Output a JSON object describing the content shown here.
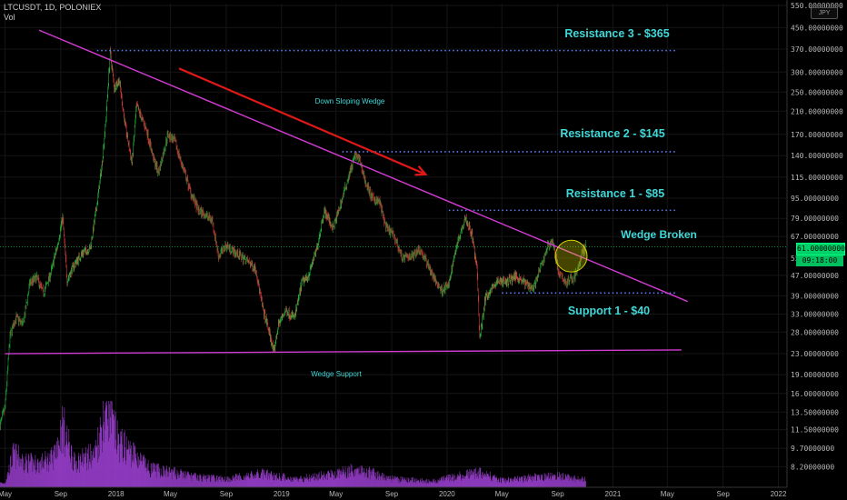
{
  "header": {
    "symbol_line": "LTCUSDT, 1D, POLONIEX",
    "volume_label": "Vol",
    "currency_badge": "JPY"
  },
  "price_tag": {
    "value": "61.00000000",
    "timer": "09:18:00"
  },
  "colors": {
    "background": "#000000",
    "wedge_line": "#d13bd1",
    "level_dotted": "#5f7fff",
    "annotation_text": "#3fd8d8",
    "arrow": "#e01818",
    "circle_fill": "#d8d800",
    "candle_up": "#1fae3a",
    "candle_down": "#d23a3a",
    "volume": "#9b3fd0"
  },
  "chart_data": {
    "type": "candlestick",
    "title": "",
    "y_scale": "log",
    "ylim": [
      6.8,
      560
    ],
    "xlim": [
      "2017-04-20",
      "2022-01-20"
    ],
    "y_ticks": [
      "550.00000000",
      "450.00000000",
      "370.00000000",
      "300.00000000",
      "250.00000000",
      "210.00000000",
      "170.00000000",
      "140.00000000",
      "115.00000000",
      "95.00000000",
      "79.00000000",
      "67.00000000",
      "55.00000000",
      "47.00000000",
      "39.00000000",
      "33.00000000",
      "28.00000000",
      "23.00000000",
      "19.00000000",
      "16.00000000",
      "13.50000000",
      "11.50000000",
      "9.70000000",
      "8.20000000"
    ],
    "y_tick_values": [
      550,
      450,
      370,
      300,
      250,
      210,
      170,
      140,
      115,
      95,
      79,
      67,
      55,
      47,
      39,
      33,
      28,
      23,
      19,
      16,
      13.5,
      11.5,
      9.7,
      8.2
    ],
    "x_ticks": [
      {
        "label": "May",
        "date": "2017-05-01"
      },
      {
        "label": "Sep",
        "date": "2017-09-01"
      },
      {
        "label": "2018",
        "date": "2018-01-01"
      },
      {
        "label": "May",
        "date": "2018-05-01"
      },
      {
        "label": "Sep",
        "date": "2018-09-01"
      },
      {
        "label": "2019",
        "date": "2019-01-01"
      },
      {
        "label": "May",
        "date": "2019-05-01"
      },
      {
        "label": "Sep",
        "date": "2019-09-01"
      },
      {
        "label": "2020",
        "date": "2020-01-01"
      },
      {
        "label": "May",
        "date": "2020-05-01"
      },
      {
        "label": "Sep",
        "date": "2020-09-01"
      },
      {
        "label": "2021",
        "date": "2021-01-01"
      },
      {
        "label": "May",
        "date": "2021-05-01"
      },
      {
        "label": "Sep",
        "date": "2021-09-01"
      },
      {
        "label": "2022",
        "date": "2022-01-01"
      }
    ],
    "price_path": [
      [
        "2017-04-20",
        12
      ],
      [
        "2017-05-01",
        14
      ],
      [
        "2017-05-12",
        27
      ],
      [
        "2017-05-25",
        32
      ],
      [
        "2017-06-10",
        30
      ],
      [
        "2017-06-25",
        44
      ],
      [
        "2017-07-10",
        46
      ],
      [
        "2017-07-25",
        40
      ],
      [
        "2017-08-10",
        48
      ],
      [
        "2017-08-25",
        62
      ],
      [
        "2017-09-05",
        80
      ],
      [
        "2017-09-15",
        45
      ],
      [
        "2017-10-01",
        52
      ],
      [
        "2017-10-20",
        58
      ],
      [
        "2017-11-05",
        60
      ],
      [
        "2017-11-20",
        90
      ],
      [
        "2017-12-01",
        130
      ],
      [
        "2017-12-10",
        200
      ],
      [
        "2017-12-19",
        360
      ],
      [
        "2017-12-28",
        260
      ],
      [
        "2018-01-08",
        280
      ],
      [
        "2018-01-20",
        190
      ],
      [
        "2018-02-05",
        130
      ],
      [
        "2018-02-15",
        220
      ],
      [
        "2018-02-25",
        200
      ],
      [
        "2018-03-10",
        175
      ],
      [
        "2018-03-25",
        135
      ],
      [
        "2018-04-05",
        120
      ],
      [
        "2018-04-25",
        170
      ],
      [
        "2018-05-10",
        160
      ],
      [
        "2018-06-01",
        120
      ],
      [
        "2018-06-15",
        100
      ],
      [
        "2018-07-01",
        85
      ],
      [
        "2018-07-15",
        82
      ],
      [
        "2018-08-01",
        78
      ],
      [
        "2018-08-15",
        56
      ],
      [
        "2018-09-01",
        62
      ],
      [
        "2018-09-20",
        58
      ],
      [
        "2018-10-15",
        54
      ],
      [
        "2018-11-05",
        50
      ],
      [
        "2018-11-20",
        35
      ],
      [
        "2018-12-05",
        28
      ],
      [
        "2018-12-15",
        23.2
      ],
      [
        "2018-12-25",
        30
      ],
      [
        "2019-01-10",
        34
      ],
      [
        "2019-01-30",
        32
      ],
      [
        "2019-02-15",
        44
      ],
      [
        "2019-03-01",
        47
      ],
      [
        "2019-03-20",
        60
      ],
      [
        "2019-04-05",
        85
      ],
      [
        "2019-04-25",
        72
      ],
      [
        "2019-05-15",
        95
      ],
      [
        "2019-05-30",
        118
      ],
      [
        "2019-06-12",
        140
      ],
      [
        "2019-06-22",
        135
      ],
      [
        "2019-07-05",
        110
      ],
      [
        "2019-07-20",
        95
      ],
      [
        "2019-08-05",
        92
      ],
      [
        "2019-08-20",
        72
      ],
      [
        "2019-09-05",
        68
      ],
      [
        "2019-09-25",
        55
      ],
      [
        "2019-10-15",
        56
      ],
      [
        "2019-11-01",
        60
      ],
      [
        "2019-11-20",
        52
      ],
      [
        "2019-12-05",
        45
      ],
      [
        "2019-12-20",
        41
      ],
      [
        "2020-01-05",
        43
      ],
      [
        "2020-01-20",
        60
      ],
      [
        "2020-02-10",
        80
      ],
      [
        "2020-02-25",
        68
      ],
      [
        "2020-03-08",
        48
      ],
      [
        "2020-03-13",
        26
      ],
      [
        "2020-03-25",
        38
      ],
      [
        "2020-04-10",
        42
      ],
      [
        "2020-04-25",
        45
      ],
      [
        "2020-05-10",
        44
      ],
      [
        "2020-06-01",
        47
      ],
      [
        "2020-06-20",
        44
      ],
      [
        "2020-07-10",
        42
      ],
      [
        "2020-07-25",
        50
      ],
      [
        "2020-08-10",
        61
      ],
      [
        "2020-08-20",
        65
      ],
      [
        "2020-09-05",
        47
      ],
      [
        "2020-09-20",
        44
      ],
      [
        "2020-10-05",
        46
      ],
      [
        "2020-10-15",
        49
      ],
      [
        "2020-10-25",
        58
      ],
      [
        "2020-11-02",
        61
      ]
    ],
    "volume_profile": [
      [
        "2017-05-01",
        0.05
      ],
      [
        "2017-05-20",
        0.4
      ],
      [
        "2017-06-15",
        0.3
      ],
      [
        "2017-07-15",
        0.28
      ],
      [
        "2017-08-15",
        0.35
      ],
      [
        "2017-09-05",
        0.75
      ],
      [
        "2017-10-01",
        0.3
      ],
      [
        "2017-11-15",
        0.4
      ],
      [
        "2017-12-12",
        1.0
      ],
      [
        "2018-01-05",
        0.55
      ],
      [
        "2018-02-10",
        0.4
      ],
      [
        "2018-03-15",
        0.22
      ],
      [
        "2018-05-01",
        0.18
      ],
      [
        "2018-07-01",
        0.12
      ],
      [
        "2018-09-01",
        0.1
      ],
      [
        "2018-11-20",
        0.16
      ],
      [
        "2019-02-01",
        0.1
      ],
      [
        "2019-05-01",
        0.16
      ],
      [
        "2019-06-15",
        0.22
      ],
      [
        "2019-09-01",
        0.1
      ],
      [
        "2019-12-01",
        0.07
      ],
      [
        "2020-03-13",
        0.18
      ],
      [
        "2020-05-01",
        0.08
      ],
      [
        "2020-08-15",
        0.14
      ],
      [
        "2020-11-02",
        0.1
      ]
    ],
    "annotations": {
      "resistance_3": {
        "label": "Resistance 3 - $365",
        "price": 365,
        "from": "2017-11-20",
        "to": "2021-05-20"
      },
      "resistance_2": {
        "label": "Resistance 2 - $145",
        "price": 145,
        "from": "2019-05-15",
        "to": "2021-05-20"
      },
      "resistance_1": {
        "label": "Resistance 1 - $85",
        "price": 85,
        "from": "2020-01-05",
        "to": "2021-05-20"
      },
      "support_1": {
        "label": "Support 1 - $40",
        "price": 40,
        "from": "2020-05-01",
        "to": "2021-05-20"
      },
      "wedge_top": {
        "label": "Down Sloping Wedge",
        "from": [
          "2017-07-15",
          440
        ],
        "to": [
          "2021-06-15",
          37
        ]
      },
      "wedge_bottom": {
        "label": "Wedge Support",
        "from": [
          "2017-05-01",
          23
        ],
        "to": [
          "2021-06-01",
          23.8
        ]
      },
      "arrow": {
        "from": [
          "2018-05-20",
          310
        ],
        "to": [
          "2019-11-15",
          118
        ]
      },
      "circle": {
        "label": "Wedge Broken",
        "center": [
          "2020-10-01",
          56
        ],
        "radius_days": 35
      }
    },
    "last_price": 61
  }
}
